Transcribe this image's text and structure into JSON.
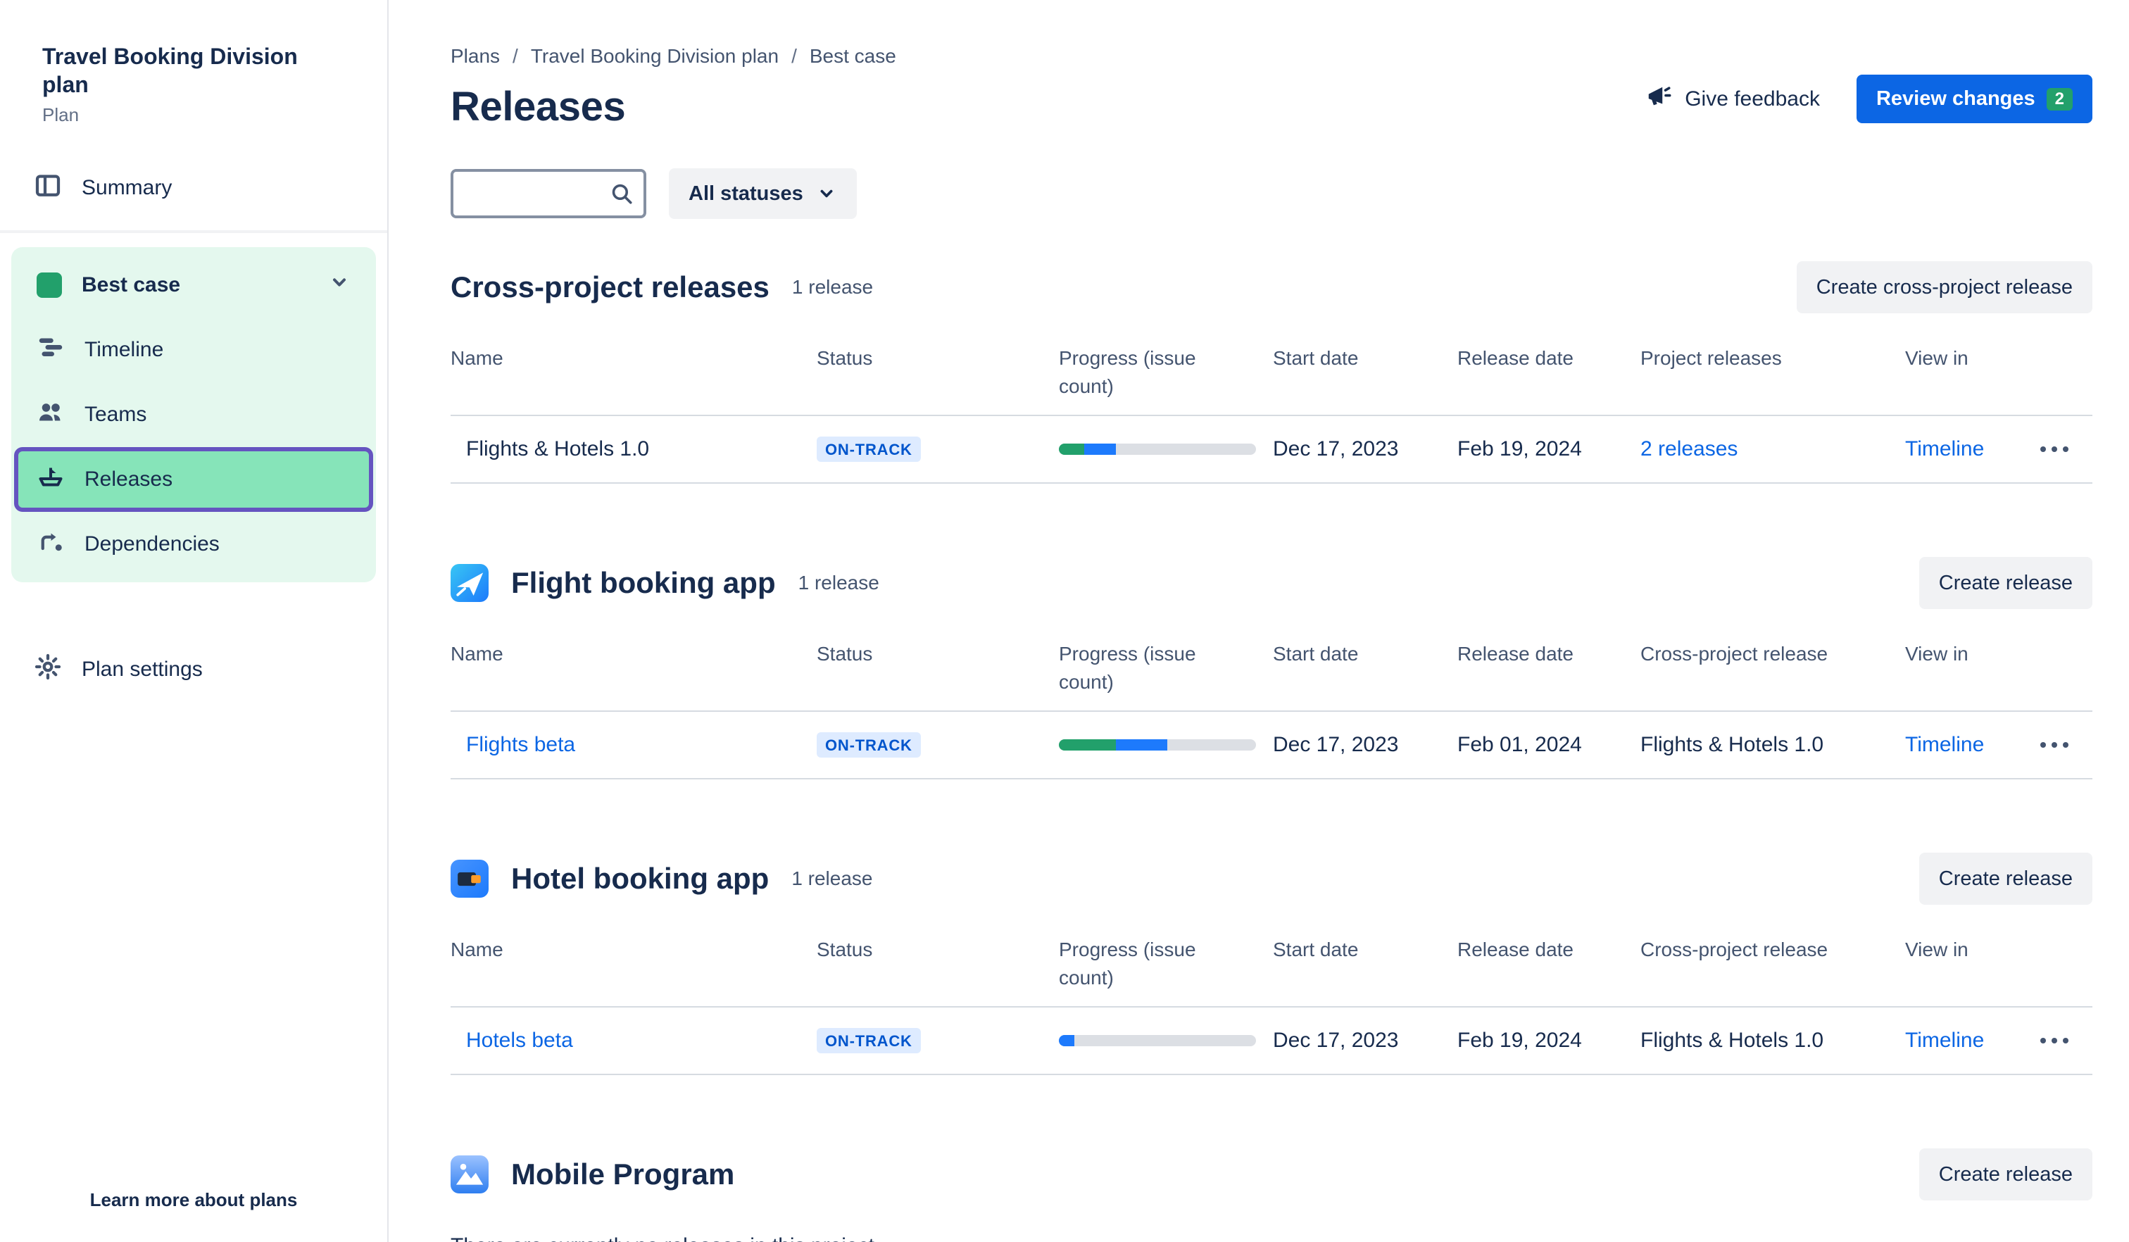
{
  "colors": {
    "accent_blue": "#0C66E4",
    "link_blue": "#0C66E4",
    "status_bg": "#DEEBFF",
    "status_text": "#0055CC",
    "progress_green": "#22A06B",
    "progress_blue": "#1D7AFC",
    "nav_group_green": "#E4F8EE",
    "selected_item_green": "#86E4B9",
    "selected_border_purple": "#6554C0",
    "badge_green": "#22A06B"
  },
  "sidebar": {
    "title": "Travel Booking Division plan",
    "subtitle": "Plan",
    "items": {
      "summary": "Summary",
      "best_case": "Best case",
      "timeline": "Timeline",
      "teams": "Teams",
      "releases": "Releases",
      "dependencies": "Dependencies",
      "plan_settings": "Plan settings"
    },
    "footer": "Learn more about plans"
  },
  "header": {
    "breadcrumbs": [
      "Plans",
      "Travel Booking Division plan",
      "Best case"
    ],
    "title": "Releases",
    "give_feedback": "Give feedback",
    "review_changes": "Review changes",
    "review_count": "2"
  },
  "filters": {
    "search_placeholder": "",
    "statuses": "All statuses"
  },
  "sections": [
    {
      "title": "Cross-project releases",
      "count": "1 release",
      "button": "Create cross-project release",
      "columns": [
        "Name",
        "Status",
        "Progress (issue count)",
        "Start date",
        "Release date",
        "Project releases",
        "View in"
      ],
      "rows": [
        {
          "name": "Flights & Hotels 1.0",
          "status": "ON-TRACK",
          "progress": {
            "green_pct": 13,
            "blue_pct": 16
          },
          "start_date": "Dec 17, 2023",
          "release_date": "Feb 19, 2024",
          "related": "2 releases",
          "view_in": "Timeline"
        }
      ]
    },
    {
      "title": "Flight booking app",
      "count": "1 release",
      "button": "Create release",
      "columns": [
        "Name",
        "Status",
        "Progress (issue count)",
        "Start date",
        "Release date",
        "Cross-project release",
        "View in"
      ],
      "rows": [
        {
          "name": "Flights beta",
          "status": "ON-TRACK",
          "progress": {
            "green_pct": 29,
            "blue_pct": 26
          },
          "start_date": "Dec 17, 2023",
          "release_date": "Feb 01, 2024",
          "related": "Flights & Hotels 1.0",
          "view_in": "Timeline"
        }
      ]
    },
    {
      "title": "Hotel booking app",
      "count": "1 release",
      "button": "Create release",
      "columns": [
        "Name",
        "Status",
        "Progress (issue count)",
        "Start date",
        "Release date",
        "Cross-project release",
        "View in"
      ],
      "rows": [
        {
          "name": "Hotels beta",
          "status": "ON-TRACK",
          "progress": {
            "green_pct": 0,
            "blue_pct": 8
          },
          "start_date": "Dec 17, 2023",
          "release_date": "Feb 19, 2024",
          "related": "Flights & Hotels 1.0",
          "view_in": "Timeline"
        }
      ]
    },
    {
      "title": "Mobile Program",
      "button": "Create release",
      "empty_text": "There are currently no releases in this project."
    }
  ]
}
